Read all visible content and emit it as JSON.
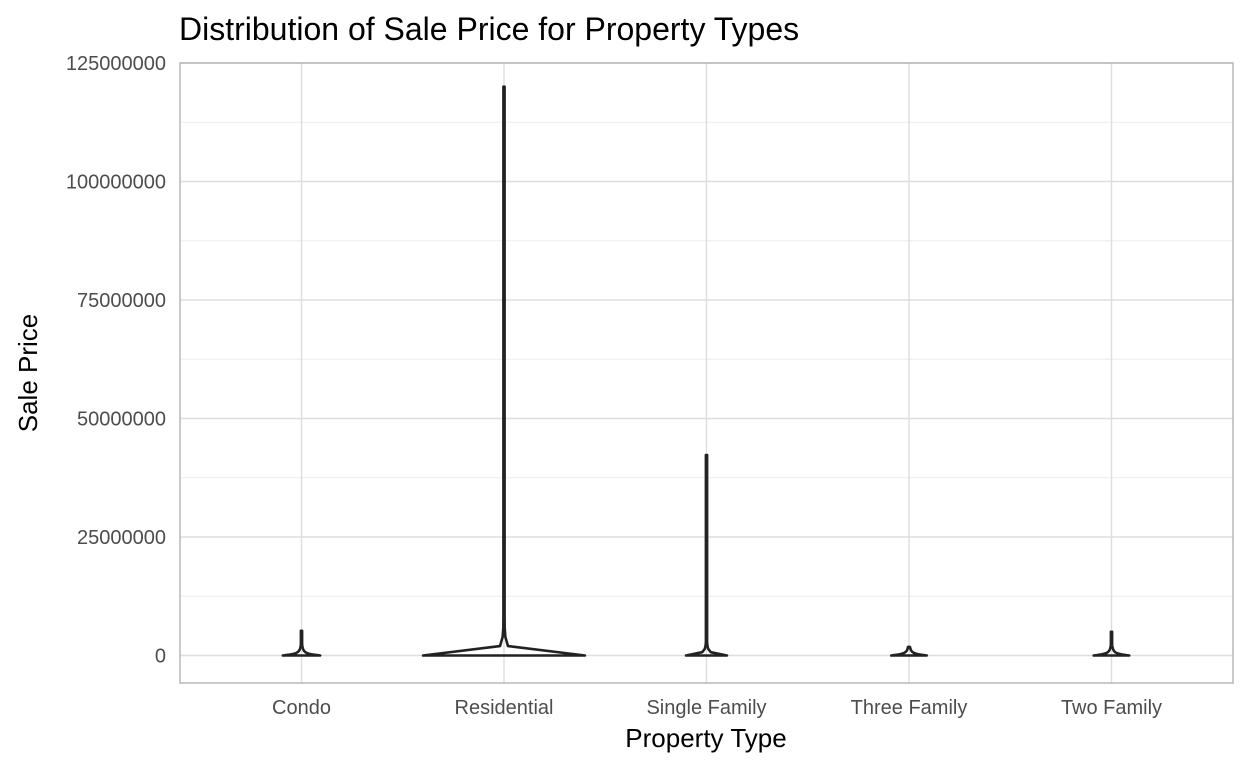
{
  "chart_data": {
    "type": "violin",
    "title": "Distribution of Sale Price for Property Types",
    "xlabel": "Property Type",
    "ylabel": "Sale Price",
    "categories": [
      "Condo",
      "Residential",
      "Single Family",
      "Three Family",
      "Two Family"
    ],
    "ylim": [
      -5800000,
      125000000
    ],
    "yticks": [
      0,
      25000000,
      50000000,
      75000000,
      100000000,
      125000000
    ],
    "ytick_labels": [
      "0",
      "25000000",
      "50000000",
      "75000000",
      "100000000",
      "125000000"
    ],
    "grid": true,
    "violins": [
      {
        "category": "Condo",
        "min": 0,
        "max": 5200000,
        "relative_width": 0.21
      },
      {
        "category": "Residential",
        "min": 0,
        "max": 120000000,
        "relative_width": 0.91
      },
      {
        "category": "Single Family",
        "min": 0,
        "max": 42300000,
        "relative_width": 0.23
      },
      {
        "category": "Three Family",
        "min": 0,
        "max": 1800000,
        "relative_width": 0.2
      },
      {
        "category": "Two Family",
        "min": 0,
        "max": 5000000,
        "relative_width": 0.2
      }
    ]
  }
}
